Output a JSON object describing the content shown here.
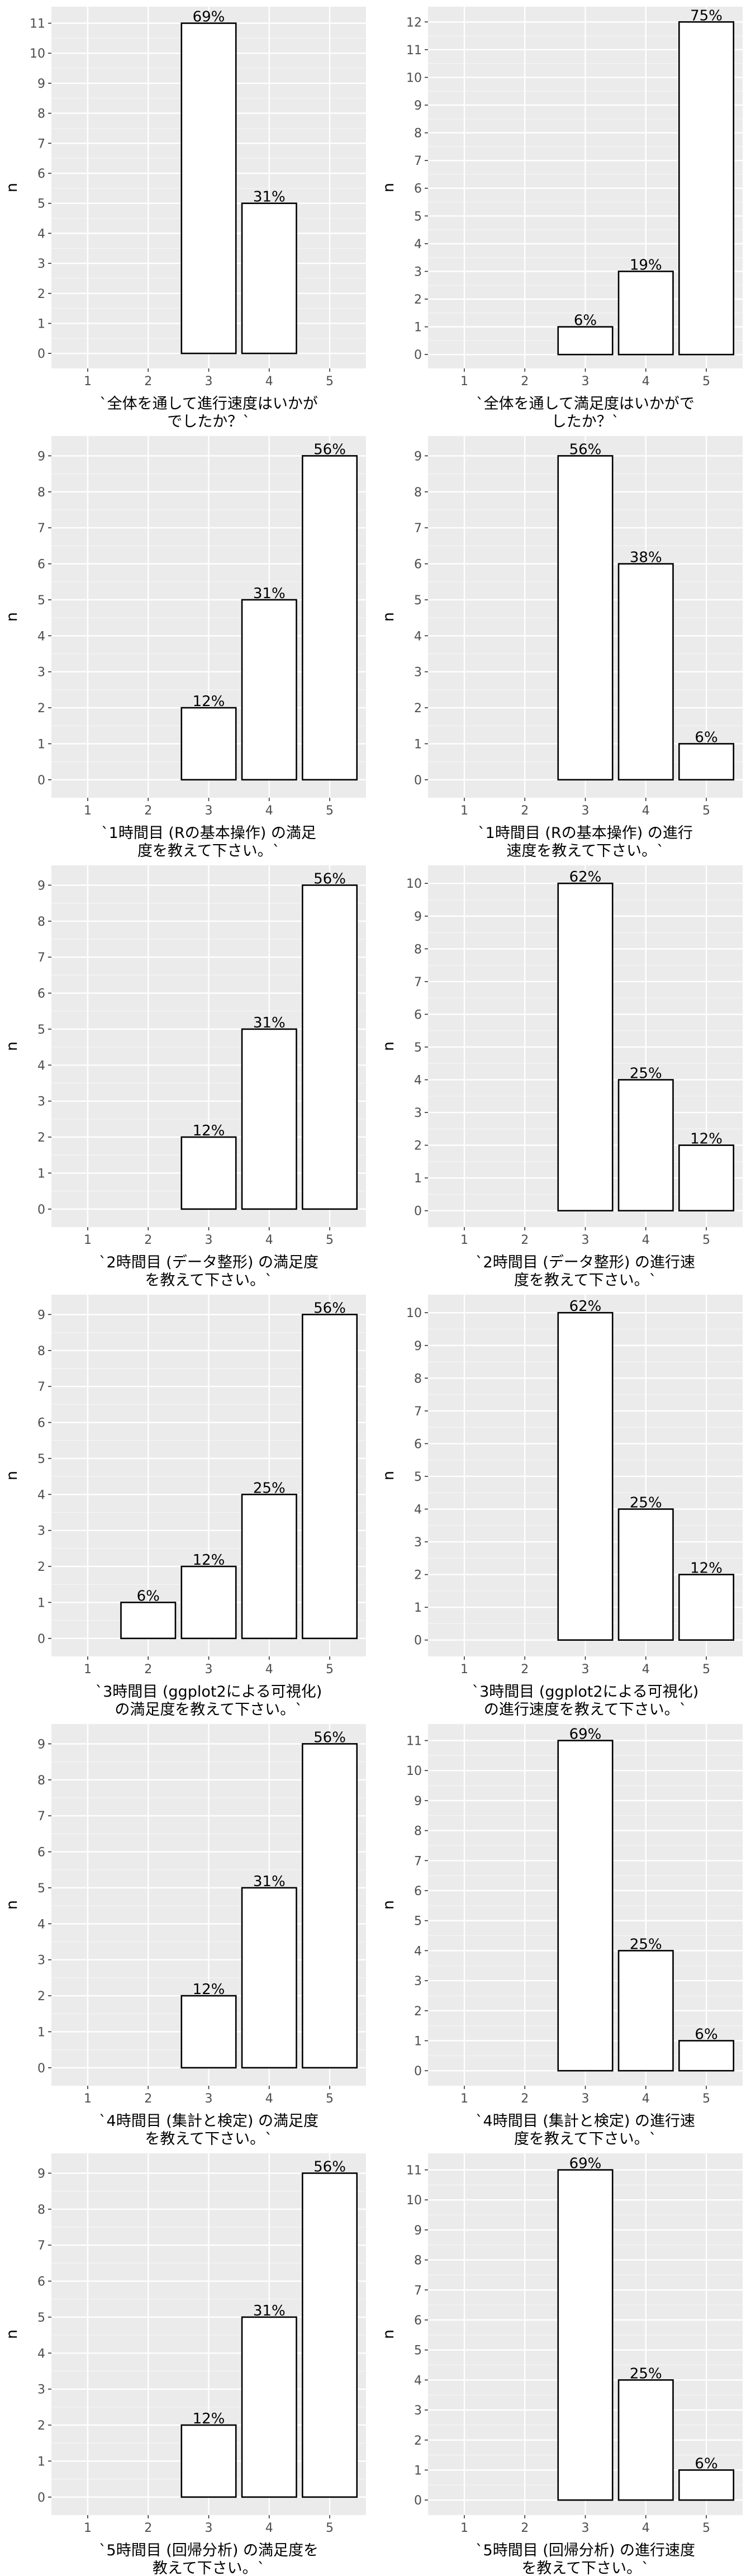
{
  "chart_data": [
    {
      "type": "bar",
      "categories": [
        "1",
        "2",
        "3",
        "4",
        "5"
      ],
      "values": [
        0,
        0,
        11,
        5,
        0
      ],
      "labels": [
        "",
        "",
        "69%",
        "31%",
        ""
      ],
      "xlabel": [
        "`全体を通して進行速度はいかが",
        "でしたか？`"
      ],
      "ylabel": "n",
      "ylim": [
        0,
        11
      ],
      "yticks": [
        0,
        1,
        2,
        3,
        4,
        5,
        6,
        7,
        8,
        9,
        10,
        11
      ],
      "grid": true
    },
    {
      "type": "bar",
      "categories": [
        "1",
        "2",
        "3",
        "4",
        "5"
      ],
      "values": [
        0,
        0,
        1,
        3,
        12
      ],
      "labels": [
        "",
        "",
        "6%",
        "19%",
        "75%"
      ],
      "xlabel": [
        "`全体を通して満足度はいかがで",
        "したか？`"
      ],
      "ylabel": "n",
      "ylim": [
        0,
        12
      ],
      "yticks": [
        0,
        1,
        2,
        3,
        4,
        5,
        6,
        7,
        8,
        9,
        10,
        11,
        12
      ],
      "grid": true
    },
    {
      "type": "bar",
      "categories": [
        "1",
        "2",
        "3",
        "4",
        "5"
      ],
      "values": [
        0,
        0,
        2,
        5,
        9
      ],
      "labels": [
        "",
        "",
        "12%",
        "31%",
        "56%"
      ],
      "xlabel": [
        "`1時間目 (Rの基本操作) の満足",
        "度を教えて下さい。`"
      ],
      "ylabel": "n",
      "ylim": [
        0,
        9
      ],
      "yticks": [
        0,
        1,
        2,
        3,
        4,
        5,
        6,
        7,
        8,
        9
      ],
      "grid": true
    },
    {
      "type": "bar",
      "categories": [
        "1",
        "2",
        "3",
        "4",
        "5"
      ],
      "values": [
        0,
        0,
        9,
        6,
        1
      ],
      "labels": [
        "",
        "",
        "56%",
        "38%",
        "6%"
      ],
      "xlabel": [
        "`1時間目 (Rの基本操作) の進行",
        "速度を教えて下さい。`"
      ],
      "ylabel": "n",
      "ylim": [
        0,
        9
      ],
      "yticks": [
        0,
        1,
        2,
        3,
        4,
        5,
        6,
        7,
        8,
        9
      ],
      "grid": true
    },
    {
      "type": "bar",
      "categories": [
        "1",
        "2",
        "3",
        "4",
        "5"
      ],
      "values": [
        0,
        0,
        2,
        5,
        9
      ],
      "labels": [
        "",
        "",
        "12%",
        "31%",
        "56%"
      ],
      "xlabel": [
        "`2時間目 (データ整形) の満足度",
        "を教えて下さい。`"
      ],
      "ylabel": "n",
      "ylim": [
        0,
        9
      ],
      "yticks": [
        0,
        1,
        2,
        3,
        4,
        5,
        6,
        7,
        8,
        9
      ],
      "grid": true
    },
    {
      "type": "bar",
      "categories": [
        "1",
        "2",
        "3",
        "4",
        "5"
      ],
      "values": [
        0,
        0,
        10,
        4,
        2
      ],
      "labels": [
        "",
        "",
        "62%",
        "25%",
        "12%"
      ],
      "xlabel": [
        "`2時間目 (データ整形) の進行速",
        "度を教えて下さい。`"
      ],
      "ylabel": "n",
      "ylim": [
        0,
        10
      ],
      "yticks": [
        0,
        1,
        2,
        3,
        4,
        5,
        6,
        7,
        8,
        9,
        10
      ],
      "grid": true
    },
    {
      "type": "bar",
      "categories": [
        "1",
        "2",
        "3",
        "4",
        "5"
      ],
      "values": [
        0,
        1,
        2,
        4,
        9
      ],
      "labels": [
        "",
        "6%",
        "12%",
        "25%",
        "56%"
      ],
      "xlabel": [
        "`3時間目 (ggplot2による可視化)",
        "の満足度を教えて下さい。`"
      ],
      "ylabel": "n",
      "ylim": [
        0,
        9
      ],
      "yticks": [
        0,
        1,
        2,
        3,
        4,
        5,
        6,
        7,
        8,
        9
      ],
      "grid": true
    },
    {
      "type": "bar",
      "categories": [
        "1",
        "2",
        "3",
        "4",
        "5"
      ],
      "values": [
        0,
        0,
        10,
        4,
        2
      ],
      "labels": [
        "",
        "",
        "62%",
        "25%",
        "12%"
      ],
      "xlabel": [
        "`3時間目 (ggplot2による可視化)",
        "の進行速度を教えて下さい。`"
      ],
      "ylabel": "n",
      "ylim": [
        0,
        10
      ],
      "yticks": [
        0,
        1,
        2,
        3,
        4,
        5,
        6,
        7,
        8,
        9,
        10
      ],
      "grid": true
    },
    {
      "type": "bar",
      "categories": [
        "1",
        "2",
        "3",
        "4",
        "5"
      ],
      "values": [
        0,
        0,
        2,
        5,
        9
      ],
      "labels": [
        "",
        "",
        "12%",
        "31%",
        "56%"
      ],
      "xlabel": [
        "`4時間目 (集計と検定) の満足度",
        "を教えて下さい。`"
      ],
      "ylabel": "n",
      "ylim": [
        0,
        9
      ],
      "yticks": [
        0,
        1,
        2,
        3,
        4,
        5,
        6,
        7,
        8,
        9
      ],
      "grid": true
    },
    {
      "type": "bar",
      "categories": [
        "1",
        "2",
        "3",
        "4",
        "5"
      ],
      "values": [
        0,
        0,
        11,
        4,
        1
      ],
      "labels": [
        "",
        "",
        "69%",
        "25%",
        "6%"
      ],
      "xlabel": [
        "`4時間目 (集計と検定) の進行速",
        "度を教えて下さい。`"
      ],
      "ylabel": "n",
      "ylim": [
        0,
        11
      ],
      "yticks": [
        0,
        1,
        2,
        3,
        4,
        5,
        6,
        7,
        8,
        9,
        10,
        11
      ],
      "grid": true
    },
    {
      "type": "bar",
      "categories": [
        "1",
        "2",
        "3",
        "4",
        "5"
      ],
      "values": [
        0,
        0,
        2,
        5,
        9
      ],
      "labels": [
        "",
        "",
        "12%",
        "31%",
        "56%"
      ],
      "xlabel": [
        "`5時間目 (回帰分析) の満足度を",
        "教えて下さい。`"
      ],
      "ylabel": "n",
      "ylim": [
        0,
        9
      ],
      "yticks": [
        0,
        1,
        2,
        3,
        4,
        5,
        6,
        7,
        8,
        9
      ],
      "grid": true
    },
    {
      "type": "bar",
      "categories": [
        "1",
        "2",
        "3",
        "4",
        "5"
      ],
      "values": [
        0,
        0,
        11,
        4,
        1
      ],
      "labels": [
        "",
        "",
        "69%",
        "25%",
        "6%"
      ],
      "xlabel": [
        "`5時間目 (回帰分析) の進行速度",
        "を教えて下さい。`"
      ],
      "ylabel": "n",
      "ylim": [
        0,
        11
      ],
      "yticks": [
        0,
        1,
        2,
        3,
        4,
        5,
        6,
        7,
        8,
        9,
        10,
        11
      ],
      "grid": true
    }
  ]
}
